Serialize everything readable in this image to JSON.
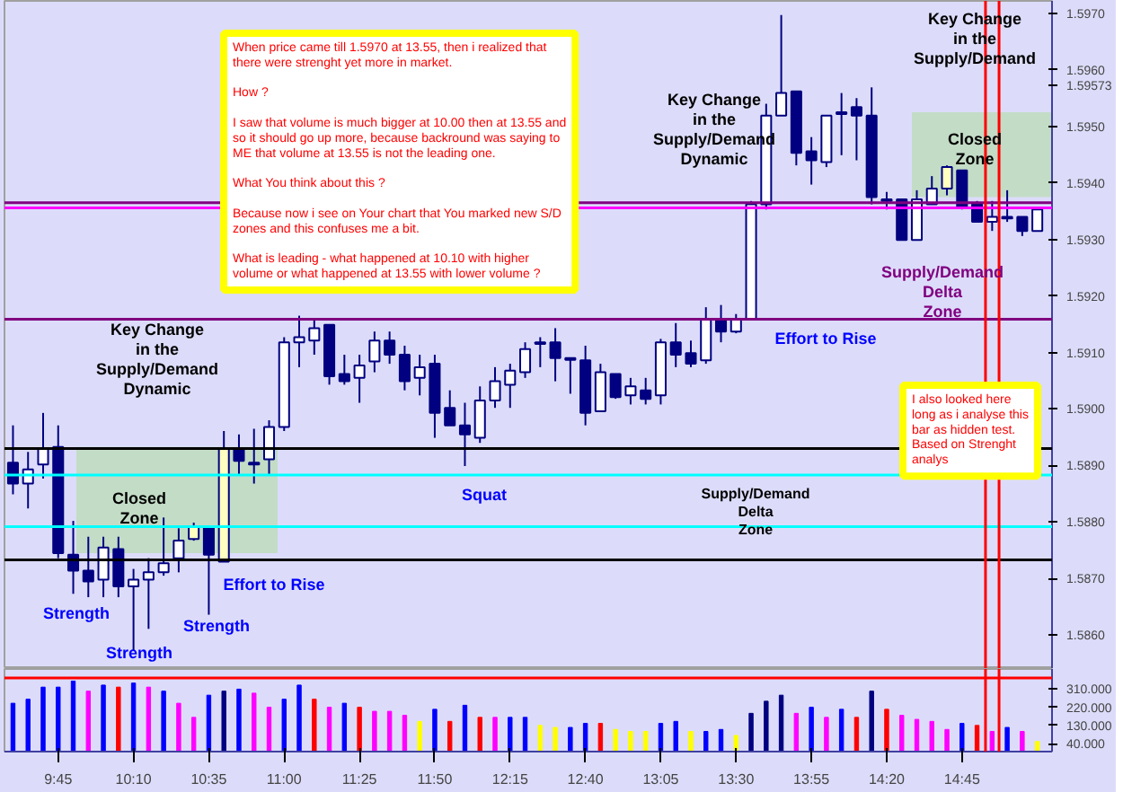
{
  "chart_data": [
    {
      "type": "candlestick",
      "x": [
        9.5,
        9.5833,
        9.6667,
        9.75,
        9.8333,
        9.9167,
        10,
        10.0833,
        10.1667,
        10.25,
        10.3333,
        10.4167,
        10.5,
        10.5833,
        10.6667,
        10.75,
        10.8333,
        10.9167,
        11,
        11.0833,
        11.1667,
        11.25,
        11.3333,
        11.4167,
        11.5,
        11.5833,
        11.6667,
        11.75,
        11.8333,
        11.9167,
        12,
        12.0833,
        12.1667,
        12.25,
        12.3333,
        12.4167,
        12.5,
        12.5833,
        12.6667,
        12.75,
        12.8333,
        12.9167,
        13,
        13.0833,
        13.1667,
        13.25,
        13.3333,
        13.4167,
        13.5,
        13.5833,
        13.6667,
        13.75,
        13.8333,
        13.9167,
        14,
        14.0833,
        14.1667,
        14.25,
        14.3333,
        14.4167,
        14.5,
        14.5833,
        14.6667,
        14.75,
        14.8333,
        14.9167,
        15,
        15.0833,
        15.1667
      ],
      "ohlc": [
        [
          1.58905,
          1.58971,
          1.58849,
          1.58868
        ],
        [
          1.58868,
          1.58924,
          1.58824,
          1.58893
        ],
        [
          1.58902,
          1.58993,
          1.58877,
          1.5893
        ],
        [
          1.58933,
          1.58971,
          1.58736,
          1.58745
        ],
        [
          1.58742,
          1.58802,
          1.58673,
          1.58714
        ],
        [
          1.58714,
          1.58774,
          1.58667,
          1.58695
        ],
        [
          1.58698,
          1.58774,
          1.58667,
          1.58755
        ],
        [
          1.58752,
          1.58774,
          1.58667,
          1.58686
        ],
        [
          1.58686,
          1.58717,
          1.58573,
          1.58698
        ],
        [
          1.58698,
          1.58736,
          1.58611,
          1.58711
        ],
        [
          1.58711,
          1.58808,
          1.58705,
          1.58727
        ],
        [
          1.58736,
          1.58789,
          1.58711,
          1.58767
        ],
        [
          1.5877,
          1.58799,
          1.58767,
          1.58792
        ],
        [
          1.58792,
          1.58792,
          1.58636,
          1.58742
        ],
        [
          1.5873,
          1.58961,
          1.5873,
          1.5893
        ],
        [
          1.5893,
          1.58955,
          1.58883,
          1.58908
        ],
        [
          1.58902,
          1.58965,
          1.58868,
          1.58905
        ],
        [
          1.58911,
          1.5898,
          1.58883,
          1.58968
        ],
        [
          1.58968,
          1.59127,
          1.58961,
          1.59118
        ],
        [
          1.59118,
          1.59165,
          1.59074,
          1.59127
        ],
        [
          1.59121,
          1.59159,
          1.59096,
          1.59143
        ],
        [
          1.59149,
          1.59149,
          1.59043,
          1.59058
        ],
        [
          1.59062,
          1.59096,
          1.59043,
          1.59049
        ],
        [
          1.59055,
          1.59096,
          1.59011,
          1.59077
        ],
        [
          1.59084,
          1.59137,
          1.59065,
          1.59121
        ],
        [
          1.59121,
          1.59137,
          1.5908,
          1.59096
        ],
        [
          1.59096,
          1.59112,
          1.59033,
          1.59049
        ],
        [
          1.59055,
          1.59096,
          1.59024,
          1.59074
        ],
        [
          1.5908,
          1.59096,
          1.58949,
          1.58993
        ],
        [
          1.59002,
          1.59033,
          1.58971,
          1.58971
        ],
        [
          1.58971,
          1.59011,
          1.58899,
          1.58955
        ],
        [
          1.58949,
          1.5904,
          1.5894,
          1.59015
        ],
        [
          1.59015,
          1.59074,
          1.59002,
          1.59049
        ],
        [
          1.59043,
          1.5908,
          1.59002,
          1.59068
        ],
        [
          1.59065,
          1.59118,
          1.59055,
          1.59106
        ],
        [
          1.59115,
          1.59127,
          1.59074,
          1.59118
        ],
        [
          1.59118,
          1.59143,
          1.59049,
          1.5909
        ],
        [
          1.5909,
          1.5909,
          1.59027,
          1.59087
        ],
        [
          1.59086,
          1.59112,
          1.58971,
          1.58993
        ],
        [
          1.58996,
          1.5908,
          1.58996,
          1.59065
        ],
        [
          1.59062,
          1.59062,
          1.59018,
          1.59021
        ],
        [
          1.59024,
          1.59055,
          1.59008,
          1.5904
        ],
        [
          1.59033,
          1.59055,
          1.59008,
          1.59018
        ],
        [
          1.59024,
          1.59124,
          1.59008,
          1.59118
        ],
        [
          1.59118,
          1.59152,
          1.59074,
          1.59096
        ],
        [
          1.59099,
          1.59121,
          1.59074,
          1.5908
        ],
        [
          1.59086,
          1.5918,
          1.5908,
          1.59159
        ],
        [
          1.59159,
          1.59184,
          1.59118,
          1.59137
        ],
        [
          1.59137,
          1.59168,
          1.59134,
          1.59159
        ],
        [
          1.59159,
          1.59368,
          1.59159,
          1.59362
        ],
        [
          1.59362,
          1.5954,
          1.59353,
          1.59519
        ],
        [
          1.59519,
          1.59697,
          1.59519,
          1.59559
        ],
        [
          1.59562,
          1.59562,
          1.59431,
          1.59453
        ],
        [
          1.59456,
          1.59481,
          1.59397,
          1.5944
        ],
        [
          1.59437,
          1.59519,
          1.59428,
          1.59519
        ],
        [
          1.59522,
          1.59559,
          1.59449,
          1.59525
        ],
        [
          1.59534,
          1.5955,
          1.5944,
          1.59519
        ],
        [
          1.59519,
          1.59569,
          1.59362,
          1.59375
        ],
        [
          1.59371,
          1.59384,
          1.59353,
          1.59368
        ],
        [
          1.59371,
          1.59371,
          1.59299,
          1.59299
        ],
        [
          1.59299,
          1.59387,
          1.59299,
          1.59371
        ],
        [
          1.59362,
          1.59412,
          1.59362,
          1.5939
        ],
        [
          1.5939,
          1.59431,
          1.59378,
          1.59428
        ],
        [
          1.59422,
          1.59422,
          1.59353,
          1.59356
        ],
        [
          1.59362,
          1.59368,
          1.59331,
          1.59331
        ],
        [
          1.59331,
          1.59368,
          1.59315,
          1.5934
        ],
        [
          1.5934,
          1.59387,
          1.59331,
          1.59337
        ],
        [
          1.5934,
          1.5934,
          1.59306,
          1.59315
        ],
        [
          1.59315,
          1.59353,
          1.59315,
          1.59353
        ]
      ],
      "colors": [
        "#000080",
        "#ffffff",
        "#ffffff",
        "#000080",
        "#000080",
        "#000080",
        "#ffffff",
        "#000080",
        "#ffffff",
        "#ffffff",
        "#ffffff",
        "#ffffff",
        "#ffffc0",
        "#000080",
        "#ffffc0",
        "#000080",
        "#ffffff",
        "#ffffff",
        "#ffffff",
        "#ffffff",
        "#ffffff",
        "#000080",
        "#000080",
        "#ffffff",
        "#ffffff",
        "#000080",
        "#000080",
        "#ffffff",
        "#000080",
        "#000080",
        "#000080",
        "#ffffff",
        "#ffffff",
        "#ffffff",
        "#ffffff",
        "#ffffff",
        "#000080",
        "#000080",
        "#000080",
        "#ffffff",
        "#000080",
        "#ffffff",
        "#000080",
        "#ffffff",
        "#000080",
        "#000080",
        "#ffffff",
        "#000080",
        "#ffffff",
        "#ffffff",
        "#ffffff",
        "#ffffff",
        "#000080",
        "#000080",
        "#ffffff",
        "#ffffff",
        "#000080",
        "#000080",
        "#000080",
        "#000080",
        "#ffffff",
        "#ffffff",
        "#ffffc0",
        "#000080",
        "#000080",
        "#ffffff",
        "#000080",
        "#000080",
        "#ffffff"
      ],
      "xlim": [
        9.453,
        15.248
      ],
      "ylim": [
        1.5854,
        1.59722
      ],
      "yticks": [
        {
          "value": 1.586,
          "label": "1.5860"
        },
        {
          "value": 1.587,
          "label": "1.5870"
        },
        {
          "value": 1.588,
          "label": "1.5880"
        },
        {
          "value": 1.589,
          "label": "1.5890"
        },
        {
          "value": 1.59,
          "label": "1.5900"
        },
        {
          "value": 1.591,
          "label": "1.5910"
        },
        {
          "value": 1.592,
          "label": "1.5920"
        },
        {
          "value": 1.593,
          "label": "1.5930"
        },
        {
          "value": 1.594,
          "label": "1.5940"
        },
        {
          "value": 1.595,
          "label": "1.5950"
        },
        {
          "value": 1.59573,
          "label": "1.59573"
        },
        {
          "value": 1.596,
          "label": "1.5960"
        },
        {
          "value": 1.597,
          "label": "1.5970"
        }
      ],
      "tick_labels": "y",
      "ref_lines": [
        {
          "axis": "y",
          "value": 1.5893,
          "color": "#000000"
        },
        {
          "axis": "y",
          "value": 1.58883,
          "color": "#00ffff"
        },
        {
          "axis": "y",
          "value": 1.58792,
          "color": "#00ffff"
        },
        {
          "axis": "y",
          "value": 1.58733,
          "color": "#000000"
        },
        {
          "axis": "y",
          "value": 1.59365,
          "color": "#800080"
        },
        {
          "axis": "y",
          "value": 1.59356,
          "color": "#ff00ff"
        },
        {
          "axis": "y",
          "value": 1.59159,
          "color": "#800080"
        },
        {
          "axis": "x",
          "value": 14.88,
          "color": "#ff0000"
        },
        {
          "axis": "x",
          "value": 14.955,
          "color": "#ff0000"
        }
      ],
      "bands": [
        {
          "axis": "y",
          "from": 1.58745,
          "to": 1.58933,
          "color": "#c0dcc0"
        },
        {
          "axis": "y",
          "from": 1.59375,
          "to": 1.59525,
          "color": "#c0dcc0"
        }
      ],
      "annotations": [
        "When price came till 1.5970 at 13.55, then i realized that\nthere were strenght yet more in market.\n\nHow ?\n\nI saw that volume is much bigger at 10.00 then at 13.55 and\nso it should go up more, because backround was saying to\nME that volume at 13.55 is not the leading one.\n\nWhat You think about this ?\n\nBecause now i see on Your chart that You marked new S/D\nzones and this confuses me a bit.\n\nWhat is leading - what happened at 10.10 with higher\nvolume or what happened at 13.55 with lower volume ?",
        "I also looked here\nlong as i analyse this\nbar as hidden test.\nBased on Strenght\nanalys",
        "Key Change\nin the\nSupply/Demand\nDynamic",
        "Key Change\nin the\nSupply/Demand\nDynamic",
        "Key Change\nin the\nSupply/Demand",
        "Closed\nZone",
        "Closed\nZone",
        "Strength",
        "Strength",
        "Strength",
        "Effort to Rise",
        "Squat",
        "Supply/Demand\nDelta\nZone",
        "Effort to Rise",
        "Supply/Demand\nDelta\nZone"
      ]
    },
    {
      "type": "bar",
      "x": [
        9.5,
        9.5833,
        9.6667,
        9.75,
        9.8333,
        9.9167,
        10,
        10.0833,
        10.1667,
        10.25,
        10.3333,
        10.4167,
        10.5,
        10.5833,
        10.6667,
        10.75,
        10.8333,
        10.9167,
        11,
        11.0833,
        11.1667,
        11.25,
        11.3333,
        11.4167,
        11.5,
        11.5833,
        11.6667,
        11.75,
        11.8333,
        11.9167,
        12,
        12.0833,
        12.1667,
        12.25,
        12.3333,
        12.4167,
        12.5,
        12.5833,
        12.6667,
        12.75,
        12.8333,
        12.9167,
        13,
        13.0833,
        13.1667,
        13.25,
        13.3333,
        13.4167,
        13.5,
        13.5833,
        13.6667,
        13.75,
        13.8333,
        13.9167,
        14,
        14.0833,
        14.1667,
        14.25,
        14.3333,
        14.4167,
        14.5,
        14.5833,
        14.6667,
        14.75,
        14.8333,
        14.9167,
        15,
        15.0833,
        15.1667
      ],
      "values": [
        240,
        260,
        320,
        320,
        350,
        300,
        330,
        320,
        340,
        320,
        300,
        240,
        170,
        280,
        300,
        310,
        290,
        220,
        260,
        330,
        260,
        220,
        240,
        220,
        200,
        200,
        180,
        150,
        210,
        150,
        230,
        170,
        170,
        170,
        170,
        130,
        120,
        120,
        140,
        140,
        110,
        100,
        100,
        140,
        150,
        100,
        100,
        110,
        80,
        190,
        250,
        280,
        190,
        220,
        170,
        210,
        170,
        300,
        210,
        180,
        160,
        150,
        110,
        140,
        130,
        100,
        120,
        100,
        50
      ],
      "colors": [
        "#0000ff",
        "#0000ff",
        "#0000ff",
        "#0000ff",
        "#0000ff",
        "#ff00ff",
        "#0000ff",
        "#ff0000",
        "#0000ff",
        "#ff00ff",
        "#0000ff",
        "#ff00ff",
        "#ff00ff",
        "#0000ff",
        "#000080",
        "#0000ff",
        "#ff00ff",
        "#ff00ff",
        "#0000ff",
        "#0000ff",
        "#ff0000",
        "#ff00ff",
        "#0000ff",
        "#ff0000",
        "#ff00ff",
        "#ff00ff",
        "#ff00ff",
        "#ffff00",
        "#0000ff",
        "#ff0000",
        "#0000ff",
        "#ff0000",
        "#ff00ff",
        "#0000ff",
        "#0000ff",
        "#ffff00",
        "#ffff00",
        "#0000ff",
        "#0000ff",
        "#ff0000",
        "#ffff00",
        "#ffff00",
        "#ffff00",
        "#0000ff",
        "#0000ff",
        "#ffff00",
        "#0000ff",
        "#0000ff",
        "#ffff00",
        "#000080",
        "#000080",
        "#000080",
        "#ff00ff",
        "#0000ff",
        "#ff00ff",
        "#0000ff",
        "#ff0000",
        "#000080",
        "#ff0000",
        "#ff00ff",
        "#ff00ff",
        "#ff00ff",
        "#ff00ff",
        "#0000ff",
        "#ff0000",
        "#ff00ff",
        "#0000ff",
        "#ff00ff",
        "#ffff00"
      ],
      "xlim": [
        9.453,
        15.248
      ],
      "ylim": [
        0,
        410
      ],
      "xticks": [
        {
          "value": 9.75,
          "label": "9:45"
        },
        {
          "value": 10.1667,
          "label": "10:10"
        },
        {
          "value": 10.5833,
          "label": "10:35"
        },
        {
          "value": 11,
          "label": "11:00"
        },
        {
          "value": 11.4167,
          "label": "11:25"
        },
        {
          "value": 11.8333,
          "label": "11:50"
        },
        {
          "value": 12.25,
          "label": "12:15"
        },
        {
          "value": 12.6667,
          "label": "12:40"
        },
        {
          "value": 13.0833,
          "label": "13:05"
        },
        {
          "value": 13.5,
          "label": "13:30"
        },
        {
          "value": 13.9167,
          "label": "13:55"
        },
        {
          "value": 14.3333,
          "label": "14:20"
        },
        {
          "value": 14.75,
          "label": "14:45"
        }
      ],
      "yticks": [
        {
          "value": 40,
          "label": "40.000"
        },
        {
          "value": 130,
          "label": "130.000"
        },
        {
          "value": 220,
          "label": "220.000"
        },
        {
          "value": 310,
          "label": "310.000"
        }
      ],
      "ref_lines": [
        {
          "axis": "y",
          "value": 365,
          "color": "#ff0000"
        },
        {
          "axis": "x",
          "value": 14.88,
          "color": "#ff0000"
        },
        {
          "axis": "x",
          "value": 14.955,
          "color": "#ff0000"
        }
      ]
    }
  ]
}
